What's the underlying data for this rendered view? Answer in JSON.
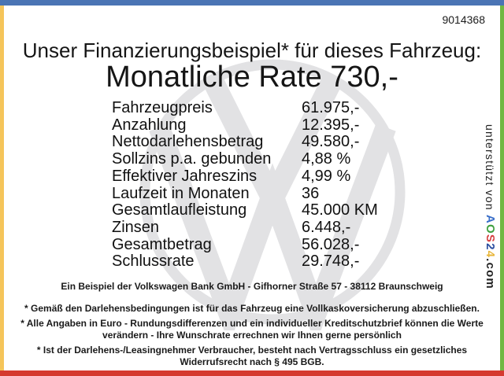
{
  "doc_id": "9014368",
  "header": {
    "title": "Unser Finanzierungsbeispiel* für dieses Fahrzeug:",
    "rate_line": "Monatliche Rate 730,-"
  },
  "finance_table": {
    "rows": [
      {
        "label": "Fahrzeugpreis",
        "value": "61.975,-"
      },
      {
        "label": "Anzahlung",
        "value": "12.395,-"
      },
      {
        "label": "Nettodarlehensbetrag",
        "value": "49.580,-"
      },
      {
        "label": "Sollzins p.a. gebunden",
        "value": "4,88 %"
      },
      {
        "label": "Effektiver Jahreszins",
        "value": "4,99 %"
      },
      {
        "label": "Laufzeit in Monaten",
        "value": "36"
      },
      {
        "label": "Gesamtlaufleistung",
        "value": "45.000 KM"
      },
      {
        "label": "Zinsen",
        "value": "6.448,-"
      },
      {
        "label": "Gesamtbetrag",
        "value": "56.028,-"
      },
      {
        "label": "Schlussrate",
        "value": "29.748,-"
      }
    ]
  },
  "footer": {
    "bank_line": "Ein Beispiel der Volkswagen Bank GmbH - Gifhorner Straße 57 - 38112 Braunschweig",
    "notes": [
      "* Gemäß den Darlehensbedingungen ist für das Fahrzeug eine Vollkaskoversicherung abzuschließen.",
      "* Alle Angaben in Euro - Rundungsdifferenzen und ein individueller Kreditschutzbrief können die Werte verändern - Ihre Wunschrate errechnen wir Ihnen gerne persönlich",
      "* Ist der Darlehens-/Leasingnehmer Verbraucher, besteht nach Vertragsschluss ein gesetzliches Widerrufsrecht nach § 495 BGB."
    ]
  },
  "sidebar": {
    "supported_by": "unterstützt von ",
    "brand_letters": [
      {
        "char": "A",
        "color": "#3a6fc9"
      },
      {
        "char": "O",
        "color": "#3fa03f"
      },
      {
        "char": "S",
        "color": "#d64040"
      },
      {
        "char": "2",
        "color": "#2a4ea0"
      },
      {
        "char": "4",
        "color": "#e8b63a"
      }
    ],
    "brand_suffix": ".com"
  },
  "watermark": {
    "icon": "vw-logo",
    "color": "#e2e2e4"
  },
  "frame_colors": {
    "top": "#4a74b4",
    "left": "#f5c55a",
    "right": "#70b843",
    "bottom": "#d53a2f"
  }
}
